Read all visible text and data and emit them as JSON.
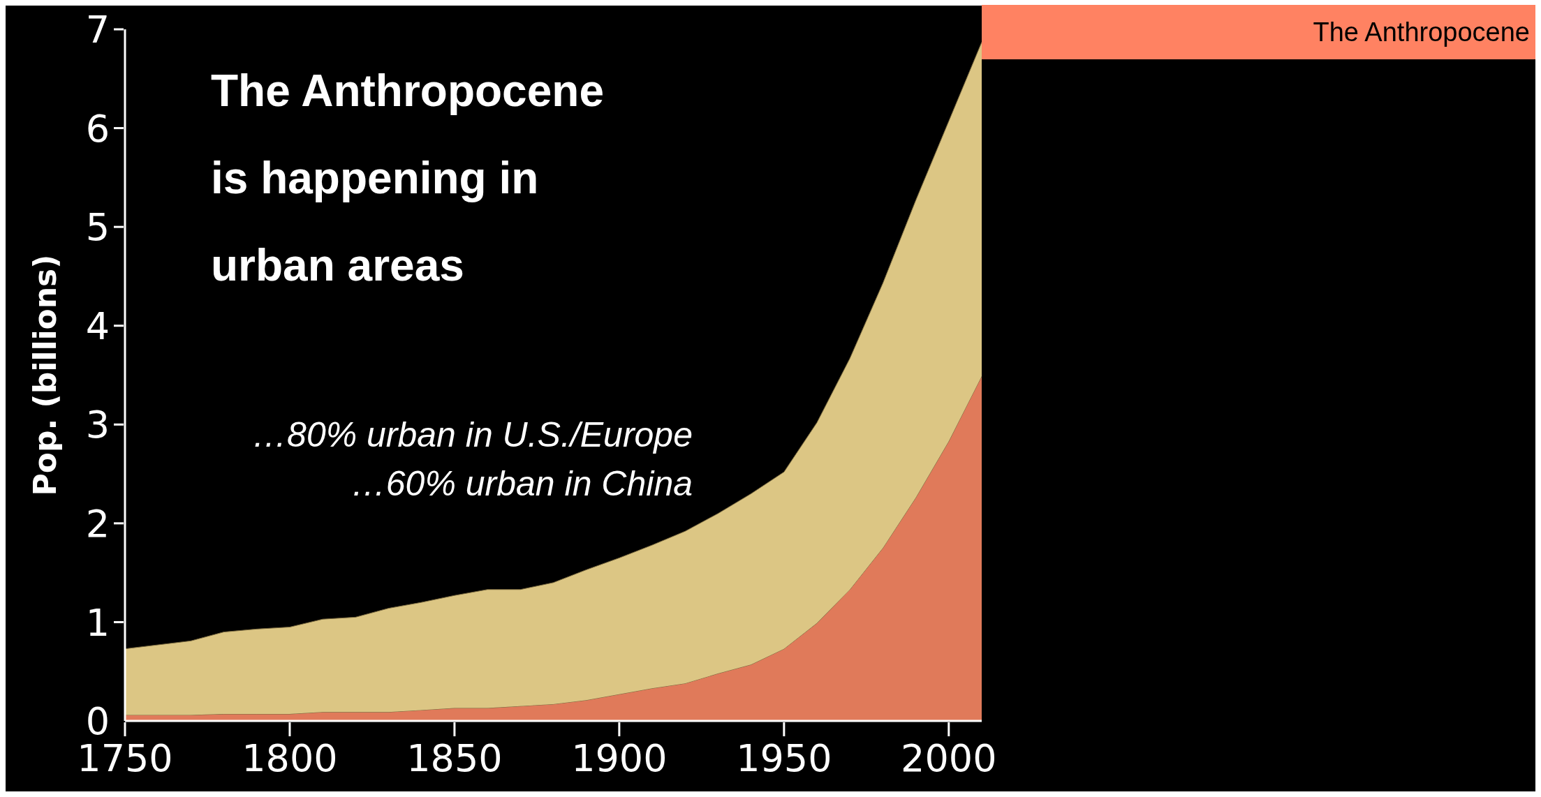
{
  "chart_data": {
    "type": "area",
    "title": "The Anthropocene is happening in urban areas",
    "ylabel": "Pop. (billions)",
    "annotations": [
      "The Anthropocene",
      "…80% urban in U.S./Europe",
      "…60% urban in China"
    ],
    "x": [
      1750,
      1760,
      1770,
      1780,
      1790,
      1800,
      1810,
      1820,
      1830,
      1840,
      1850,
      1860,
      1870,
      1880,
      1890,
      1900,
      1910,
      1920,
      1930,
      1940,
      1950,
      1960,
      1970,
      1980,
      1990,
      2000,
      2010
    ],
    "stacked": true,
    "series": [
      {
        "color": "#e07a5a",
        "values": [
          0.06,
          0.06,
          0.06,
          0.07,
          0.07,
          0.07,
          0.09,
          0.09,
          0.09,
          0.11,
          0.13,
          0.13,
          0.15,
          0.17,
          0.21,
          0.27,
          0.33,
          0.38,
          0.48,
          0.57,
          0.73,
          0.99,
          1.33,
          1.75,
          2.26,
          2.83,
          3.49
        ]
      },
      {
        "color": "#dcc684",
        "values": [
          0.67,
          0.71,
          0.75,
          0.83,
          0.86,
          0.88,
          0.94,
          0.96,
          1.05,
          1.09,
          1.14,
          1.2,
          1.18,
          1.23,
          1.32,
          1.38,
          1.45,
          1.54,
          1.62,
          1.73,
          1.79,
          2.03,
          2.34,
          2.68,
          3.01,
          3.24,
          3.38
        ]
      }
    ],
    "xlim": [
      1750,
      2010
    ],
    "xticks": [
      1750,
      1800,
      1850,
      1900,
      1950,
      2000
    ],
    "ylim": [
      0,
      7
    ],
    "yticks": [
      0,
      1,
      2,
      3,
      4,
      5,
      6,
      7
    ],
    "grid": false,
    "legend": false
  }
}
